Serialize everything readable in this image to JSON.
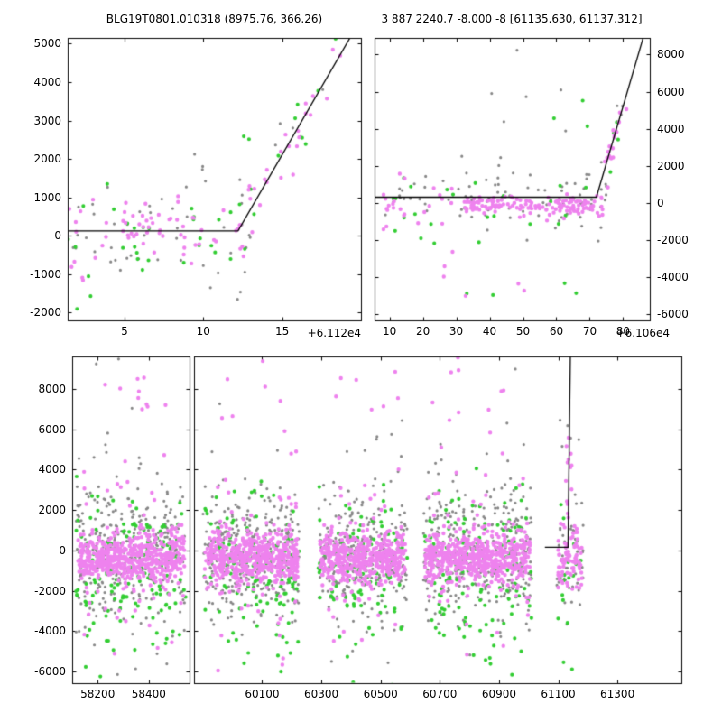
{
  "figure": {
    "background": "#ffffff",
    "text_color": "#000000"
  },
  "palette": {
    "magenta": "#ee82ee",
    "green": "#32cd32",
    "gray": "#878787",
    "line": "#000000"
  },
  "seed": 12,
  "chart_data": [
    {
      "id": "top_left",
      "type": "scatter",
      "title": "BLG19T0801.010318 (8975.76, 366.26)",
      "x_offset_label": "+6.112e4",
      "xlim": [
        1.4,
        20.0
      ],
      "ylim": [
        -2200,
        5150
      ],
      "xticks": [
        5,
        10,
        15
      ],
      "yticks": [
        -2000,
        -1000,
        0,
        1000,
        2000,
        3000,
        4000,
        5000
      ],
      "ytick_side": "left",
      "grid": false,
      "legend": "none",
      "series_colors": [
        "gray",
        "green",
        "magenta"
      ],
      "model_line": [
        [
          1.4,
          130
        ],
        [
          12.2,
          130
        ],
        [
          20.0,
          5645
        ]
      ],
      "clusters": [
        {
          "color": "gray",
          "n": 42,
          "x": [
            1.4,
            13.0
          ],
          "y_mean": 300,
          "y_sigma": 600,
          "r": 1.6
        },
        {
          "color": "gray",
          "n": 5,
          "x": [
            9.0,
            16.0
          ],
          "y_mean": -1700,
          "y_sigma": 500,
          "r": 1.6
        },
        {
          "color": "gray",
          "n": 3,
          "x": [
            8.8,
            10.5
          ],
          "y_mean": 2100,
          "y_sigma": 400,
          "r": 1.6
        },
        {
          "color": "gray",
          "type": "line",
          "n": 7,
          "x": [
            12.2,
            18.2
          ],
          "y_sigma": 650,
          "r": 1.6
        },
        {
          "color": "green",
          "n": 28,
          "x": [
            1.4,
            13.2
          ],
          "y_mean": 50,
          "y_sigma": 550,
          "r": 2.1
        },
        {
          "color": "green",
          "n": 4,
          "x": [
            1.5,
            3.0
          ],
          "y_mean": -1600,
          "y_sigma": 600,
          "r": 2.1
        },
        {
          "color": "green",
          "n": 2,
          "x": [
            12.3,
            12.9
          ],
          "y_mean": 2600,
          "y_sigma": 150,
          "r": 2.1
        },
        {
          "color": "green",
          "type": "line",
          "n": 9,
          "x": [
            12.8,
            18.5
          ],
          "y_sigma": 420,
          "r": 2.1
        },
        {
          "color": "magenta",
          "n": 60,
          "x": [
            1.4,
            13.0
          ],
          "y_mean": 150,
          "y_sigma": 380,
          "r": 2.2
        },
        {
          "color": "magenta",
          "n": 3,
          "x": [
            1.6,
            2.6
          ],
          "y_mean": -800,
          "y_sigma": 300,
          "r": 2.2
        },
        {
          "color": "magenta",
          "type": "line",
          "n": 26,
          "x": [
            12.0,
            18.7
          ],
          "y_sigma": 350,
          "r": 2.2
        }
      ]
    },
    {
      "id": "top_right",
      "type": "scatter",
      "title": "3 887 2240.7 -8.000 -8 [61135.630, 61137.312]",
      "x_offset_label": "+6.106e4",
      "xlim": [
        5.5,
        88.0
      ],
      "ylim": [
        -6350,
        8900
      ],
      "xticks": [
        10,
        20,
        30,
        40,
        50,
        60,
        70,
        80
      ],
      "yticks": [
        -6000,
        -4000,
        -2000,
        0,
        2000,
        4000,
        6000,
        8000
      ],
      "ytick_side": "right",
      "grid": false,
      "legend": "none",
      "series_colors": [
        "gray",
        "green",
        "magenta"
      ],
      "model_line": [
        [
          5.5,
          300
        ],
        [
          72.0,
          300
        ],
        [
          86.0,
          8900
        ]
      ],
      "clusters": [
        {
          "color": "gray",
          "n": 70,
          "x": [
            28,
            76
          ],
          "y_mean": 150,
          "y_sigma": 900,
          "r": 1.6
        },
        {
          "color": "gray",
          "n": 16,
          "x": [
            7,
            28
          ],
          "y_mean": 100,
          "y_sigma": 700,
          "r": 1.6
        },
        {
          "color": "gray",
          "n": 6,
          "x": [
            38,
            64
          ],
          "y_mean": 5200,
          "y_sigma": 1500,
          "r": 1.6
        },
        {
          "color": "gray",
          "type": "line",
          "n": 5,
          "x": [
            73,
            80
          ],
          "y_sigma": 900,
          "r": 1.6
        },
        {
          "color": "green",
          "n": 26,
          "x": [
            9,
            72
          ],
          "y_mean": -400,
          "y_sigma": 1100,
          "r": 2.1
        },
        {
          "color": "green",
          "n": 5,
          "x": [
            30,
            66
          ],
          "y_mean": -3800,
          "y_sigma": 1400,
          "r": 2.1
        },
        {
          "color": "green",
          "n": 3,
          "x": [
            50,
            70
          ],
          "y_mean": 4800,
          "y_sigma": 900,
          "r": 2.1
        },
        {
          "color": "green",
          "type": "line",
          "n": 4,
          "x": [
            75,
            80
          ],
          "y_sigma": 600,
          "r": 2.1
        },
        {
          "color": "magenta",
          "n": 150,
          "x": [
            32,
            74
          ],
          "y_mean": -150,
          "y_sigma": 260,
          "r": 2.2
        },
        {
          "color": "magenta",
          "n": 24,
          "x": [
            8,
            32
          ],
          "y_mean": -100,
          "y_sigma": 600,
          "r": 2.2
        },
        {
          "color": "magenta",
          "n": 6,
          "x": [
            26,
            60
          ],
          "y_mean": -4200,
          "y_sigma": 900,
          "r": 2.2
        },
        {
          "color": "magenta",
          "type": "line",
          "n": 16,
          "x": [
            74.5,
            81
          ],
          "y_sigma": 600,
          "r": 2.3
        }
      ]
    },
    {
      "id": "bottom",
      "type": "scatter",
      "title": "",
      "x_offset_label": "",
      "xsegments": [
        [
          58100,
          58560
        ],
        [
          59870,
          61516
        ]
      ],
      "ylim": [
        -6580,
        9600
      ],
      "xticks": [
        58200,
        58400,
        60100,
        60300,
        60500,
        60700,
        60900,
        61100,
        61300
      ],
      "yticks": [
        -6000,
        -4000,
        -2000,
        0,
        2000,
        4000,
        6000,
        8000
      ],
      "ytick_side": "left",
      "grid": false,
      "legend": "none",
      "series_colors": [
        "gray",
        "green",
        "magenta"
      ],
      "model_line": [
        [
          61055,
          150
        ],
        [
          61133,
          150
        ],
        [
          61141,
          9600
        ]
      ],
      "clusters": [
        {
          "color": "gray",
          "n": 300,
          "x": [
            58115,
            58545
          ],
          "y_mean": -100,
          "y_sigma": 1500,
          "r": 1.6
        },
        {
          "color": "gray",
          "n": 45,
          "x": [
            58125,
            58530
          ],
          "y_mean": 300,
          "y_sigma": 3600,
          "r": 1.6
        },
        {
          "color": "green",
          "n": 130,
          "x": [
            58115,
            58545
          ],
          "y_mean": -700,
          "y_sigma": 1700,
          "r": 2.1
        },
        {
          "color": "green",
          "n": 28,
          "x": [
            58135,
            58520
          ],
          "y_mean": -2500,
          "y_sigma": 2600,
          "r": 2.1
        },
        {
          "color": "magenta",
          "n": 520,
          "x": [
            58120,
            58540
          ],
          "y_mean": -350,
          "y_sigma": 620,
          "r": 2.2
        },
        {
          "color": "magenta",
          "n": 65,
          "x": [
            58135,
            58530
          ],
          "y_mean": 0,
          "y_sigma": 2400,
          "r": 2.2
        },
        {
          "color": "magenta",
          "n": 9,
          "x": [
            58160,
            58480
          ],
          "y_mean": 7800,
          "y_sigma": 900,
          "r": 2.2
        },
        {
          "color": "gray",
          "n": 280,
          "x": [
            59900,
            60225
          ],
          "y_mean": -100,
          "y_sigma": 1500,
          "r": 1.6
        },
        {
          "color": "gray",
          "n": 40,
          "x": [
            59910,
            60215
          ],
          "y_mean": 400,
          "y_sigma": 3500,
          "r": 1.6
        },
        {
          "color": "green",
          "n": 120,
          "x": [
            59900,
            60225
          ],
          "y_mean": -700,
          "y_sigma": 1700,
          "r": 2.1
        },
        {
          "color": "green",
          "n": 25,
          "x": [
            59915,
            60210
          ],
          "y_mean": -2800,
          "y_sigma": 2500,
          "r": 2.1
        },
        {
          "color": "magenta",
          "n": 500,
          "x": [
            59905,
            60220
          ],
          "y_mean": -380,
          "y_sigma": 600,
          "r": 2.2
        },
        {
          "color": "magenta",
          "n": 60,
          "x": [
            59915,
            60215
          ],
          "y_mean": 0,
          "y_sigma": 2400,
          "r": 2.2
        },
        {
          "color": "magenta",
          "n": 8,
          "x": [
            59940,
            60190
          ],
          "y_mean": 7600,
          "y_sigma": 1000,
          "r": 2.2
        },
        {
          "color": "gray",
          "n": 240,
          "x": [
            60290,
            60590
          ],
          "y_mean": -150,
          "y_sigma": 1500,
          "r": 1.6
        },
        {
          "color": "gray",
          "n": 35,
          "x": [
            60300,
            60580
          ],
          "y_mean": 300,
          "y_sigma": 3400,
          "r": 1.6
        },
        {
          "color": "green",
          "n": 105,
          "x": [
            60290,
            60590
          ],
          "y_mean": -700,
          "y_sigma": 1700,
          "r": 2.1
        },
        {
          "color": "green",
          "n": 20,
          "x": [
            60305,
            60575
          ],
          "y_mean": -2600,
          "y_sigma": 2500,
          "r": 2.1
        },
        {
          "color": "magenta",
          "n": 430,
          "x": [
            60295,
            60585
          ],
          "y_mean": -380,
          "y_sigma": 600,
          "r": 2.2
        },
        {
          "color": "magenta",
          "n": 55,
          "x": [
            60305,
            60580
          ],
          "y_mean": 0,
          "y_sigma": 2300,
          "r": 2.2
        },
        {
          "color": "magenta",
          "n": 7,
          "x": [
            60330,
            60560
          ],
          "y_mean": 7600,
          "y_sigma": 900,
          "r": 2.2
        },
        {
          "color": "gray",
          "n": 300,
          "x": [
            60645,
            61010
          ],
          "y_mean": -100,
          "y_sigma": 1600,
          "r": 1.6
        },
        {
          "color": "gray",
          "n": 45,
          "x": [
            60655,
            61000
          ],
          "y_mean": 400,
          "y_sigma": 3500,
          "r": 1.6
        },
        {
          "color": "green",
          "n": 125,
          "x": [
            60645,
            61010
          ],
          "y_mean": -650,
          "y_sigma": 1700,
          "r": 2.1
        },
        {
          "color": "green",
          "n": 26,
          "x": [
            60660,
            60995
          ],
          "y_mean": -2600,
          "y_sigma": 2600,
          "r": 2.1
        },
        {
          "color": "magenta",
          "n": 540,
          "x": [
            60650,
            61005
          ],
          "y_mean": -350,
          "y_sigma": 620,
          "r": 2.2
        },
        {
          "color": "magenta",
          "n": 65,
          "x": [
            60660,
            61000
          ],
          "y_mean": 0,
          "y_sigma": 2400,
          "r": 2.2
        },
        {
          "color": "magenta",
          "n": 9,
          "x": [
            60680,
            60980
          ],
          "y_mean": 7700,
          "y_sigma": 1000,
          "r": 2.2
        },
        {
          "color": "gray",
          "n": 45,
          "x": [
            61095,
            61185
          ],
          "y_mean": -300,
          "y_sigma": 1500,
          "r": 1.6
        },
        {
          "color": "gray",
          "n": 5,
          "x": [
            61100,
            61170
          ],
          "y_mean": 5600,
          "y_sigma": 800,
          "r": 1.6
        },
        {
          "color": "green",
          "n": 16,
          "x": [
            61095,
            61185
          ],
          "y_mean": -900,
          "y_sigma": 1800,
          "r": 2.1
        },
        {
          "color": "green",
          "n": 3,
          "x": [
            61110,
            61170
          ],
          "y_mean": -5900,
          "y_sigma": 400,
          "r": 2.1
        },
        {
          "color": "magenta",
          "n": 85,
          "x": [
            61098,
            61180
          ],
          "y_mean": -400,
          "y_sigma": 750,
          "r": 2.2
        },
        {
          "color": "magenta",
          "n": 8,
          "x": [
            61125,
            61150
          ],
          "y_mean": 4400,
          "y_sigma": 600,
          "r": 2.2
        },
        {
          "color": "magenta",
          "n": 5,
          "x": [
            61128,
            61148
          ],
          "y_mean": 2300,
          "y_sigma": 500,
          "r": 2.2
        }
      ]
    }
  ]
}
